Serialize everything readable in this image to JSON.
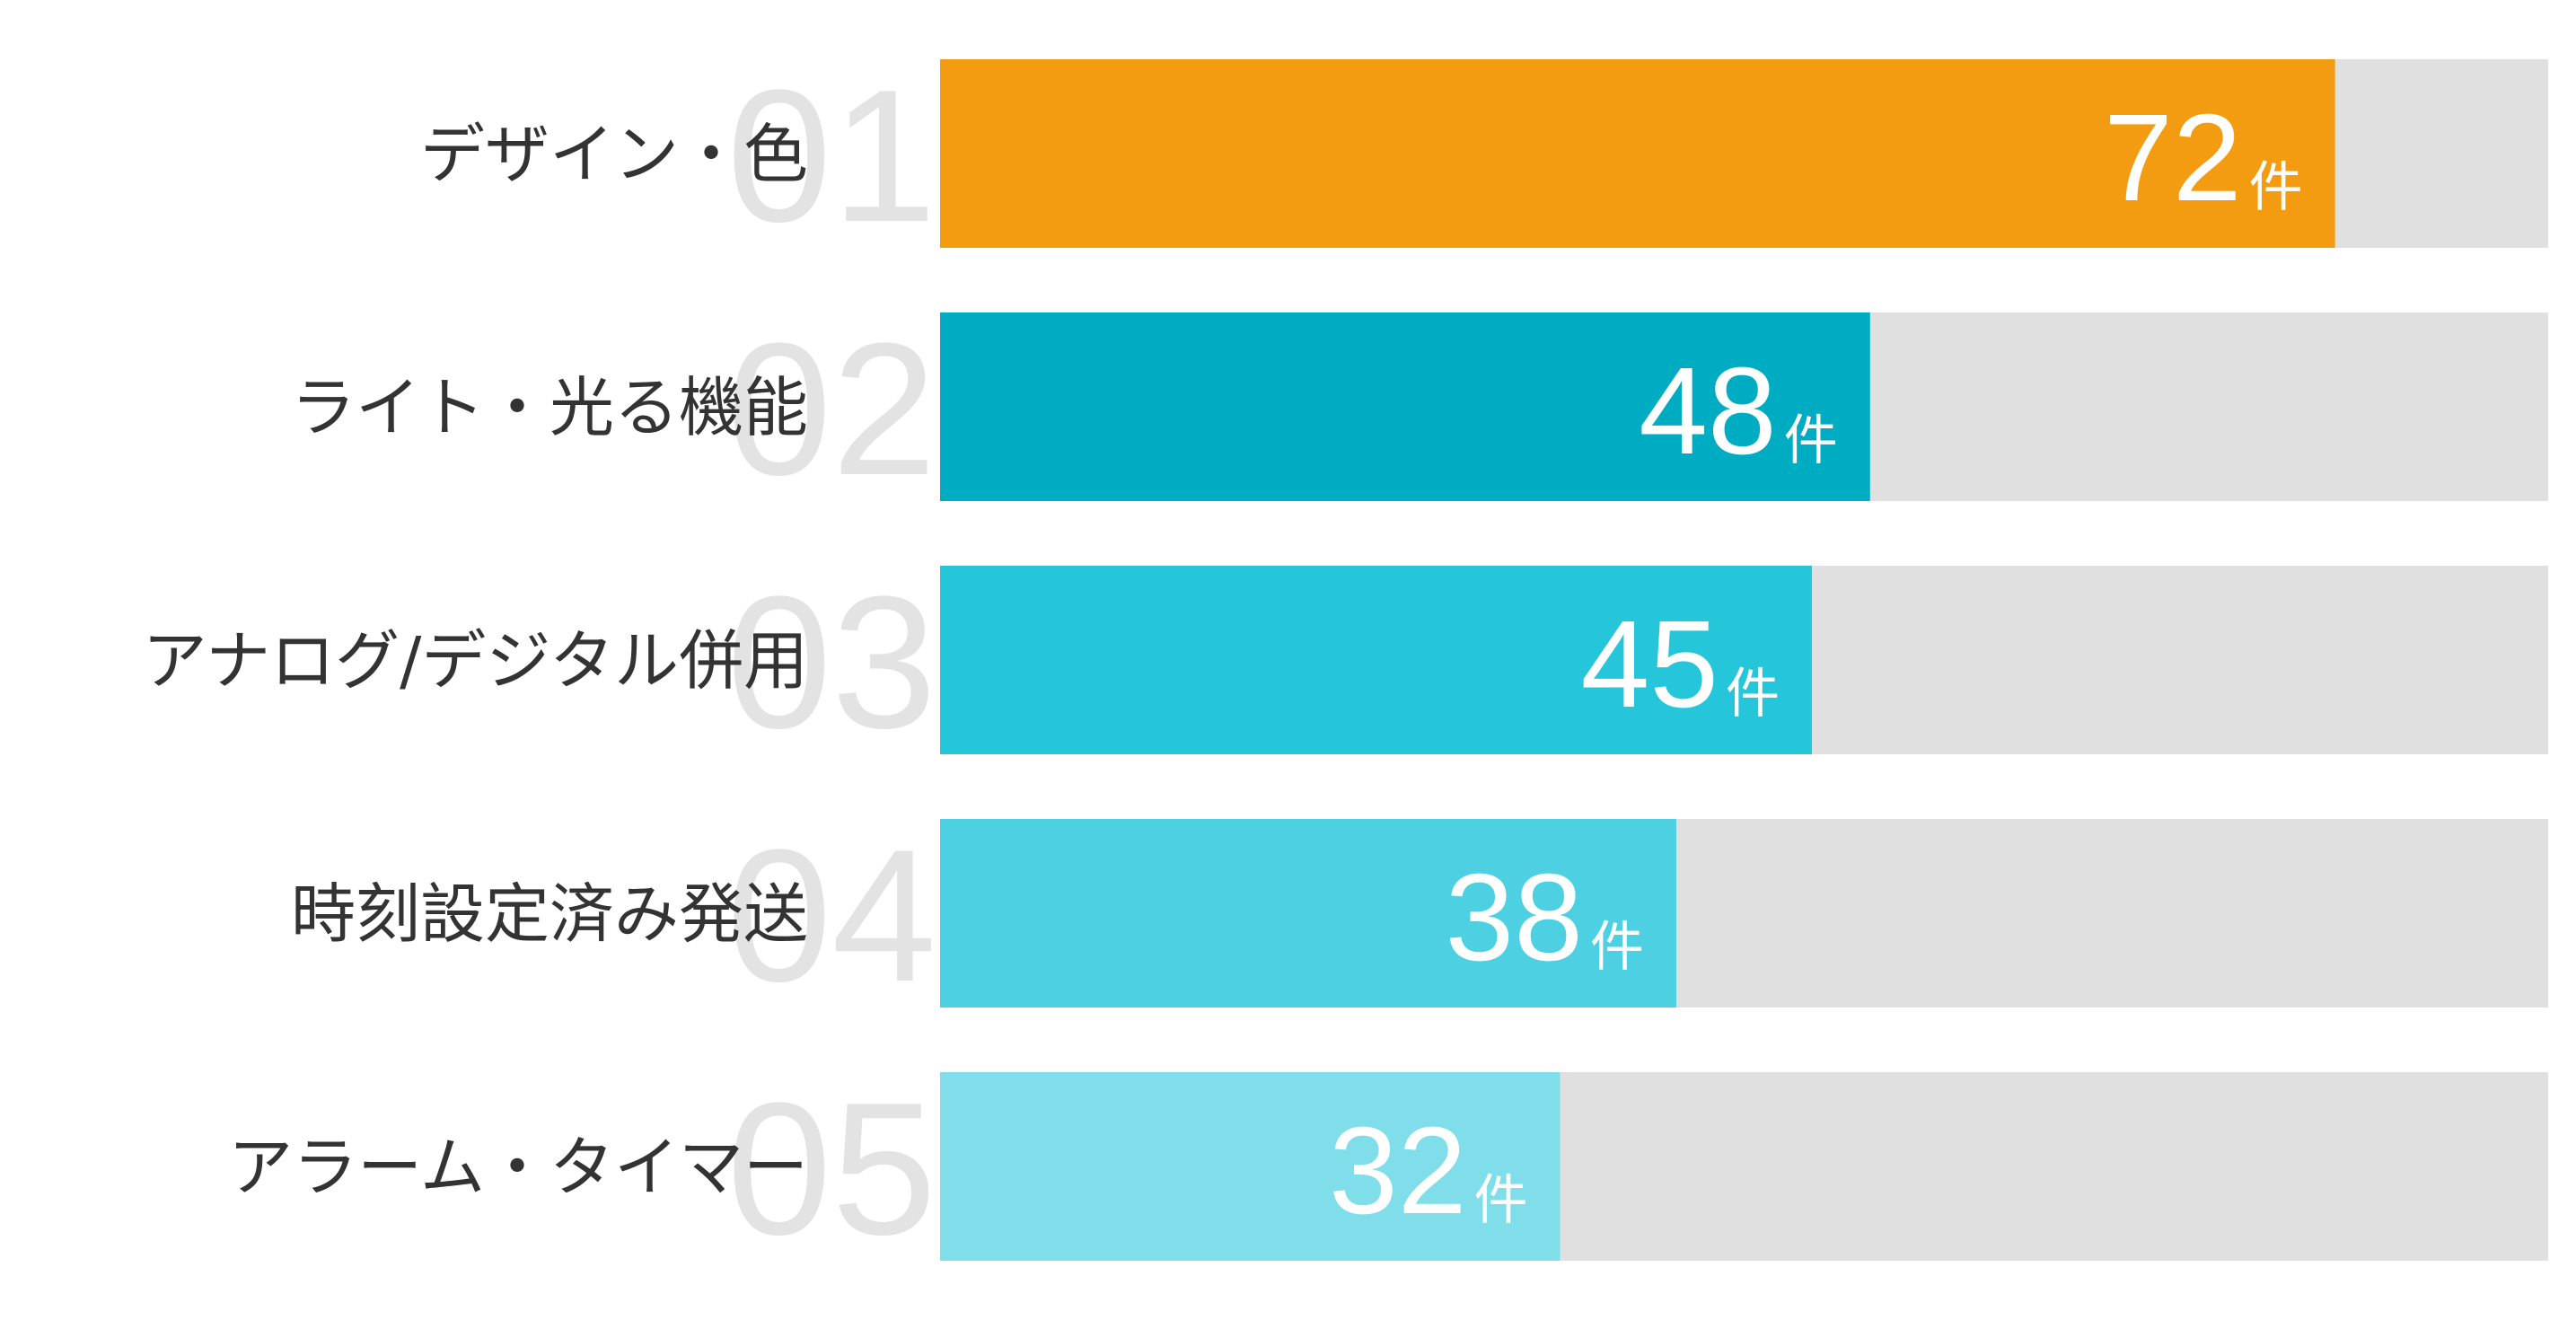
{
  "chart_data": {
    "type": "bar",
    "orientation": "horizontal",
    "categories": [
      "デザイン・色",
      "ライト・光る機能",
      "アナログ/デジタル併用",
      "時刻設定済み発送",
      "アラーム・タイマー"
    ],
    "ranks": [
      "01",
      "02",
      "03",
      "04",
      "05"
    ],
    "values": [
      72,
      48,
      45,
      38,
      32
    ],
    "unit": "件",
    "colors": [
      "#f39c12",
      "#00acc1",
      "#26c6da",
      "#4dd0e1",
      "#80deea"
    ],
    "track_color": "#e0e0e0",
    "xlim": [
      0,
      83
    ]
  }
}
